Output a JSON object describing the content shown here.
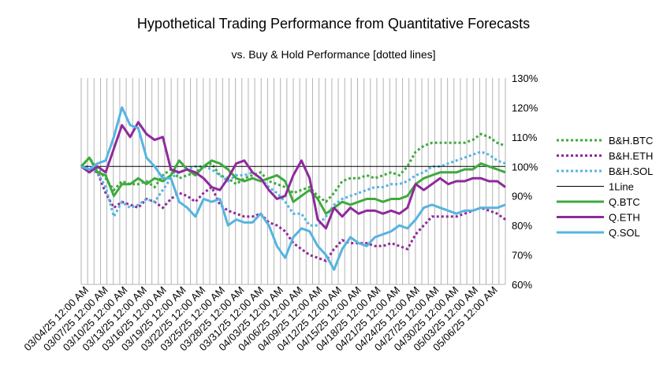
{
  "chart_data": {
    "type": "line",
    "title": "Hypothetical Trading Performance from Quantitative Forecasts",
    "subtitle": "vs. Buy & Hold Performance [dotted lines]",
    "xlabel": "",
    "ylabel": "",
    "ylim": [
      0.6,
      1.3
    ],
    "y_ticks": [
      "60%",
      "70%",
      "80%",
      "90%",
      "100%",
      "110%",
      "120%",
      "130%"
    ],
    "grid": "vertical",
    "legend_position": "right",
    "x_ticks": [
      "03/04/25 12:00 AM",
      "03/07/25 12:00 AM",
      "03/10/25 12:00 AM",
      "03/13/25 12:00 AM",
      "03/16/25 12:00 AM",
      "03/19/25 12:00 AM",
      "03/22/25 12:00 AM",
      "03/25/25 12:00 AM",
      "03/28/25 12:00 AM",
      "03/31/25 12:00 AM",
      "04/03/25 12:00 AM",
      "04/06/25 12:00 AM",
      "04/09/25 12:00 AM",
      "04/12/25 12:00 AM",
      "04/15/25 12:00 AM",
      "04/18/25 12:00 AM",
      "04/21/25 12:00 AM",
      "04/24/25 12:00 AM",
      "04/27/25 12:00 AM",
      "04/30/25 12:00 AM",
      "05/03/25 12:00 AM",
      "05/06/25 12:00 AM"
    ],
    "series": [
      {
        "name": "B&H.BTC",
        "color": "#3daa3d",
        "style": "dotted",
        "values": [
          1.0,
          1.03,
          0.99,
          0.96,
          0.92,
          0.95,
          0.94,
          0.94,
          0.95,
          0.93,
          0.97,
          0.99,
          0.96,
          0.97,
          0.98,
          1.0,
          1.01,
          0.97,
          0.96,
          0.94,
          0.96,
          0.97,
          0.98,
          0.95,
          0.94,
          0.93,
          0.91,
          0.92,
          0.93,
          0.9,
          0.88,
          0.91,
          0.95,
          0.96,
          0.96,
          0.97,
          0.96,
          0.97,
          0.98,
          0.97,
          1.0,
          1.05,
          1.07,
          1.08,
          1.08,
          1.08,
          1.08,
          1.08,
          1.09,
          1.11,
          1.1,
          1.08,
          1.07
        ]
      },
      {
        "name": "B&H.ETH",
        "color": "#8e2a9c",
        "style": "dotted",
        "values": [
          1.0,
          0.99,
          0.98,
          0.91,
          0.86,
          0.88,
          0.87,
          0.86,
          0.89,
          0.88,
          0.86,
          0.89,
          0.91,
          0.9,
          0.88,
          0.91,
          0.93,
          0.87,
          0.85,
          0.84,
          0.83,
          0.83,
          0.84,
          0.81,
          0.8,
          0.78,
          0.74,
          0.72,
          0.7,
          0.69,
          0.68,
          0.72,
          0.75,
          0.74,
          0.74,
          0.74,
          0.73,
          0.73,
          0.74,
          0.73,
          0.72,
          0.77,
          0.8,
          0.83,
          0.83,
          0.83,
          0.83,
          0.84,
          0.85,
          0.86,
          0.85,
          0.84,
          0.82
        ]
      },
      {
        "name": "B&H.SOL",
        "color": "#55b4e1",
        "style": "dotted",
        "values": [
          1.0,
          1.0,
          0.98,
          0.93,
          0.83,
          0.88,
          0.86,
          0.87,
          0.89,
          0.88,
          0.92,
          0.96,
          0.98,
          0.99,
          1.0,
          1.0,
          0.99,
          0.97,
          0.95,
          0.97,
          0.97,
          0.98,
          0.96,
          0.93,
          0.91,
          0.88,
          0.84,
          0.84,
          0.8,
          0.8,
          0.83,
          0.87,
          0.89,
          0.9,
          0.91,
          0.92,
          0.93,
          0.93,
          0.94,
          0.94,
          0.95,
          0.97,
          0.98,
          1.0,
          1.0,
          1.01,
          1.02,
          1.03,
          1.04,
          1.05,
          1.04,
          1.02,
          1.01
        ]
      },
      {
        "name": "1Line",
        "color": "#000000",
        "style": "thin",
        "values": [
          1.0,
          1.0
        ]
      },
      {
        "name": "Q.BTC",
        "color": "#3daa3d",
        "style": "solid",
        "values": [
          1.0,
          1.03,
          0.98,
          0.97,
          0.9,
          0.94,
          0.94,
          0.96,
          0.94,
          0.96,
          0.95,
          0.97,
          1.02,
          0.99,
          0.97,
          1.0,
          1.02,
          1.01,
          0.99,
          0.96,
          0.95,
          0.96,
          0.95,
          0.96,
          0.97,
          0.95,
          0.88,
          0.9,
          0.92,
          0.89,
          0.84,
          0.86,
          0.88,
          0.87,
          0.88,
          0.89,
          0.89,
          0.88,
          0.89,
          0.89,
          0.9,
          0.94,
          0.96,
          0.97,
          0.98,
          0.98,
          0.98,
          0.99,
          0.99,
          1.01,
          1.0,
          0.99,
          0.98
        ]
      },
      {
        "name": "Q.ETH",
        "color": "#8e2a9c",
        "style": "solid",
        "values": [
          1.0,
          0.98,
          1.0,
          0.98,
          1.06,
          1.14,
          1.1,
          1.15,
          1.11,
          1.09,
          1.1,
          0.99,
          0.98,
          0.99,
          0.98,
          0.96,
          0.93,
          0.92,
          0.96,
          1.01,
          1.02,
          0.98,
          0.96,
          0.92,
          0.89,
          0.9,
          0.97,
          1.02,
          0.96,
          0.82,
          0.79,
          0.86,
          0.83,
          0.86,
          0.84,
          0.85,
          0.85,
          0.84,
          0.85,
          0.84,
          0.86,
          0.94,
          0.92,
          0.94,
          0.96,
          0.94,
          0.95,
          0.95,
          0.96,
          0.96,
          0.95,
          0.95,
          0.93
        ]
      },
      {
        "name": "Q.SOL",
        "color": "#55b4e1",
        "style": "solid",
        "values": [
          1.0,
          0.99,
          1.01,
          1.02,
          1.1,
          1.2,
          1.14,
          1.13,
          1.03,
          1.0,
          0.96,
          0.96,
          0.88,
          0.86,
          0.83,
          0.89,
          0.88,
          0.89,
          0.8,
          0.82,
          0.81,
          0.81,
          0.84,
          0.8,
          0.73,
          0.69,
          0.76,
          0.79,
          0.78,
          0.73,
          0.7,
          0.65,
          0.72,
          0.76,
          0.74,
          0.73,
          0.76,
          0.77,
          0.78,
          0.8,
          0.79,
          0.82,
          0.86,
          0.87,
          0.86,
          0.85,
          0.84,
          0.85,
          0.85,
          0.86,
          0.86,
          0.86,
          0.87
        ]
      }
    ]
  }
}
